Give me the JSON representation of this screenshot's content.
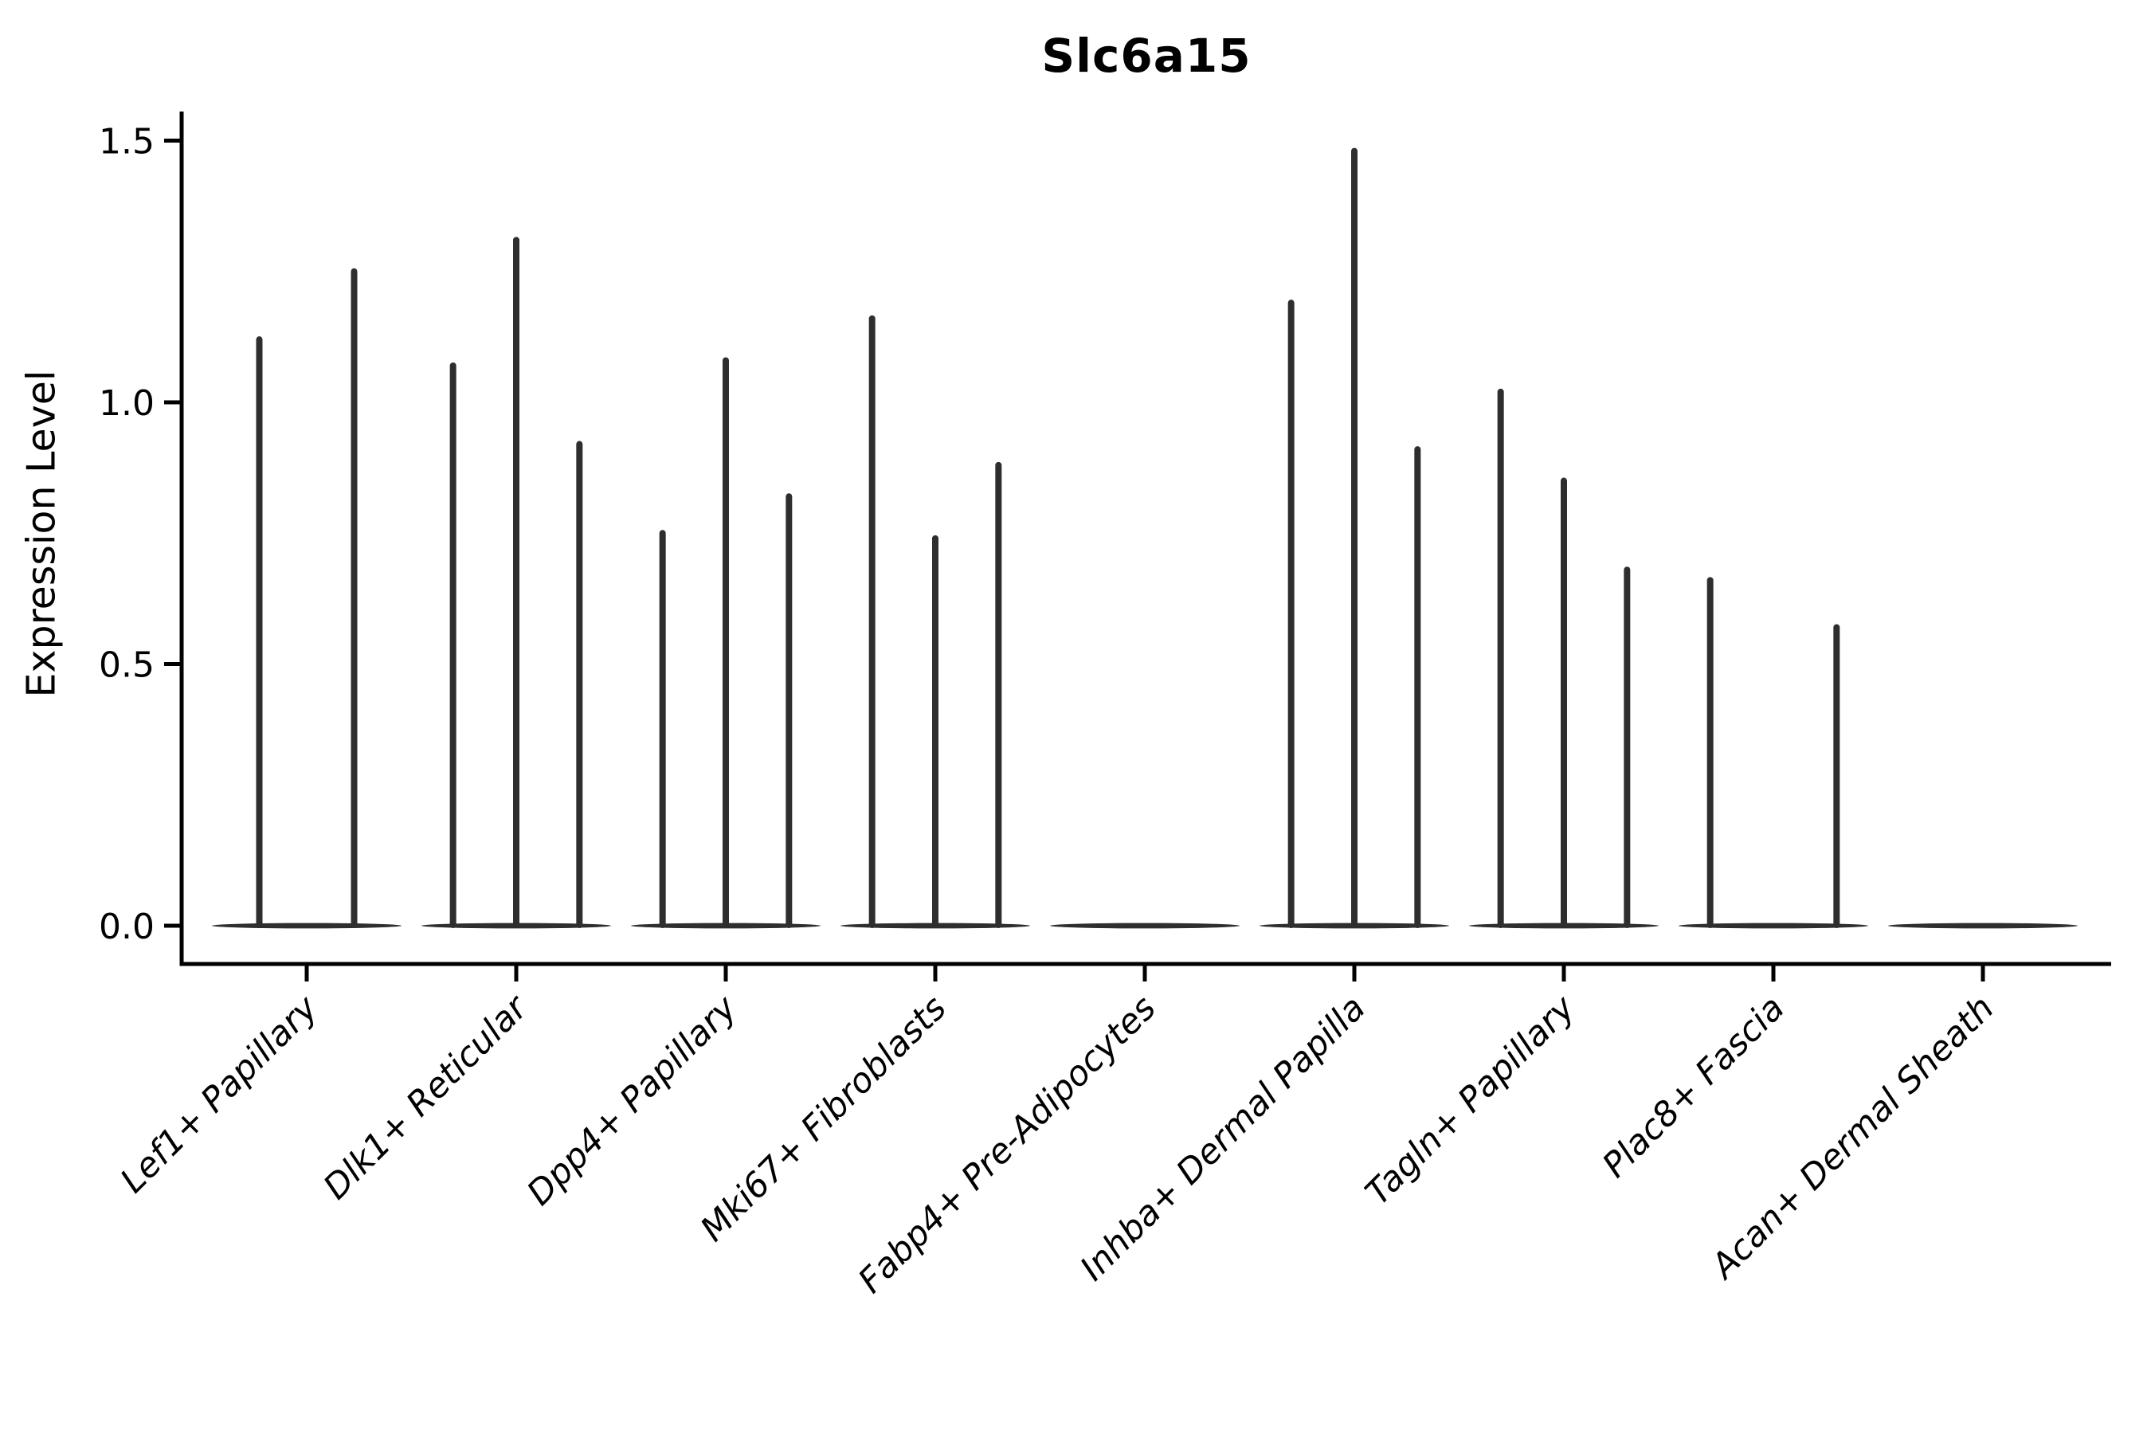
{
  "figure": {
    "title": "Slc6a15",
    "y_axis_label": "Expression Level"
  },
  "colors": {
    "background": "#ffffff",
    "violin": "#2e2e2e",
    "axis": "#000000",
    "text": "#000000"
  },
  "chart_data": {
    "type": "violin",
    "title": "Slc6a15",
    "xlabel": "",
    "ylabel": "Expression Level",
    "ytick_values": [
      0.0,
      0.5,
      1.0,
      1.5
    ],
    "ytick_labels": [
      "0.0",
      "0.5",
      "1.0",
      "1.5"
    ],
    "ylim": [
      -0.08,
      1.56
    ],
    "grid": false,
    "legend_position": "none",
    "x_labels_rotation_degrees": 45,
    "categories": [
      "Lef1+ Papillary",
      "Dlk1+ Reticular",
      "Dpp4+ Papillary",
      "Mki67+ Fibroblasts",
      "Fabp4+ Pre-Adipocytes",
      "Inhba+ Dermal Papilla",
      "Tagln+ Papillary",
      "Plac8+ Fascia",
      "Acan+ Dermal Sheath"
    ],
    "groups": [
      {
        "category": "Lef1+ Papillary",
        "violin_peaks": [
          1.12,
          1.25
        ]
      },
      {
        "category": "Dlk1+ Reticular",
        "violin_peaks": [
          1.07,
          1.31,
          0.92
        ]
      },
      {
        "category": "Dpp4+ Papillary",
        "violin_peaks": [
          0.75,
          1.08,
          0.82
        ]
      },
      {
        "category": "Mki67+ Fibroblasts",
        "violin_peaks": [
          1.16,
          0.74,
          0.88
        ]
      },
      {
        "category": "Fabp4+ Pre-Adipocytes",
        "violin_peaks": [
          0,
          0,
          0
        ]
      },
      {
        "category": "Inhba+ Dermal Papilla",
        "violin_peaks": [
          1.19,
          1.48,
          0.91
        ]
      },
      {
        "category": "Tagln+ Papillary",
        "violin_peaks": [
          1.02,
          0.85,
          0.68
        ]
      },
      {
        "category": "Plac8+ Fascia",
        "violin_peaks": [
          0.66,
          0,
          0.57
        ]
      },
      {
        "category": "Acan+ Dermal Sheath",
        "violin_peaks": [
          0,
          0,
          0
        ]
      }
    ]
  }
}
